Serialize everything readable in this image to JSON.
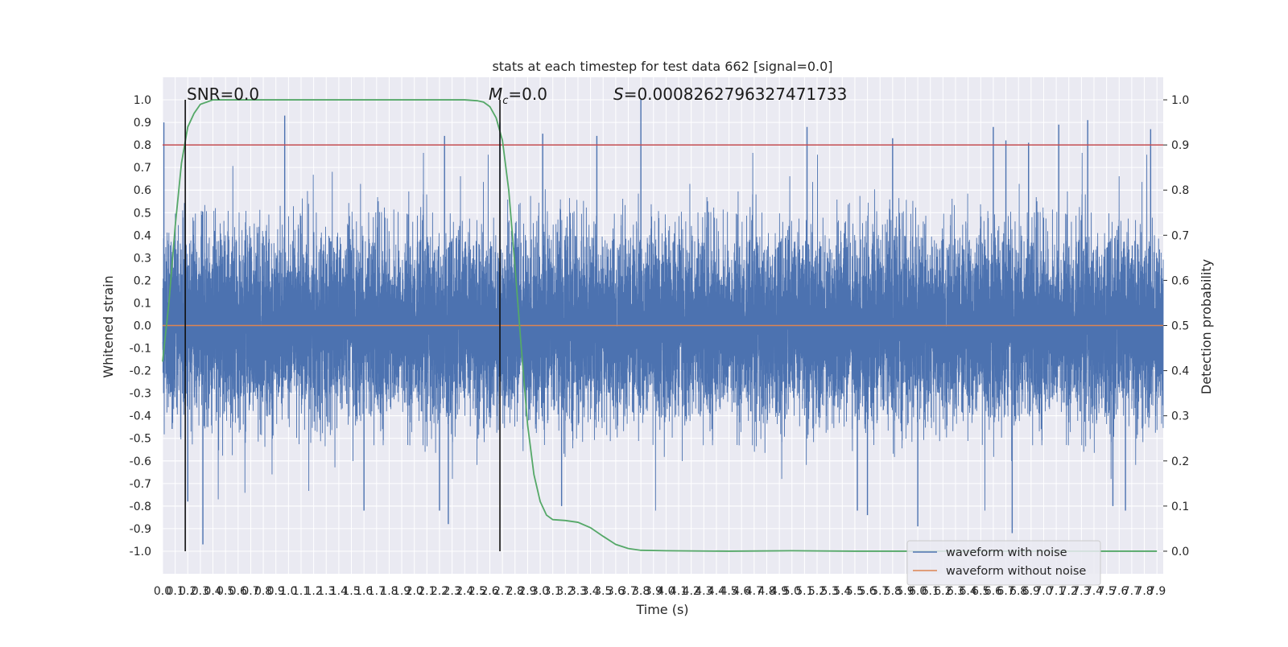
{
  "chart_data": {
    "type": "line",
    "title": "stats at each timestep for test data 662 [signal=0.0]",
    "xlabel": "Time (s)",
    "ylabel": "Whitened strain",
    "y2label": "Detection probability",
    "xlim": [
      0.0,
      7.95
    ],
    "ylim": [
      -1.1,
      1.1
    ],
    "y2lim": [
      -0.05,
      1.05
    ],
    "x_ticks": [
      "0.0",
      "0.1",
      "0.2",
      "0.3",
      "0.4",
      "0.5",
      "0.6",
      "0.7",
      "0.8",
      "0.9",
      "1.0",
      "1.1",
      "1.2",
      "1.3",
      "1.4",
      "1.5",
      "1.6",
      "1.7",
      "1.8",
      "1.9",
      "2.0",
      "2.1",
      "2.2",
      "2.3",
      "2.4",
      "2.5",
      "2.6",
      "2.7",
      "2.8",
      "2.9",
      "3.0",
      "3.1",
      "3.2",
      "3.3",
      "3.4",
      "3.5",
      "3.6",
      "3.7",
      "3.8",
      "3.9",
      "4.0",
      "4.1",
      "4.2",
      "4.3",
      "4.4",
      "4.5",
      "4.6",
      "4.7",
      "4.8",
      "4.9",
      "5.0",
      "5.1",
      "5.2",
      "5.3",
      "5.4",
      "5.5",
      "5.6",
      "5.7",
      "5.8",
      "5.9",
      "6.0",
      "6.1",
      "6.2",
      "6.3",
      "6.4",
      "6.5",
      "6.6",
      "6.7",
      "6.8",
      "6.9",
      "7.0",
      "7.1",
      "7.2",
      "7.3",
      "7.4",
      "7.5",
      "7.6",
      "7.7",
      "7.8",
      "7.9"
    ],
    "y_ticks": [
      "1.0",
      "0.9",
      "0.8",
      "0.7",
      "0.6",
      "0.5",
      "0.4",
      "0.3",
      "0.2",
      "0.1",
      "0.0",
      "-0.1",
      "-0.2",
      "-0.3",
      "-0.4",
      "-0.5",
      "-0.6",
      "-0.7",
      "-0.8",
      "-0.9",
      "-1.0"
    ],
    "y2_ticks": [
      "1.0",
      "0.9",
      "0.8",
      "0.7",
      "0.6",
      "0.5",
      "0.4",
      "0.3",
      "0.2",
      "0.1",
      "0.0"
    ],
    "grid": true,
    "legend": {
      "placement": "lower-right",
      "entries": [
        {
          "label": "waveform with noise",
          "color": "#4c72b0"
        },
        {
          "label": "waveform without noise",
          "color": "#dd8452"
        }
      ]
    },
    "annotations": {
      "snr": "SNR=0.0",
      "mc_symbol": "M",
      "mc_sub": "c",
      "mc_value": "=0.0",
      "s_symbol": "S",
      "s_value": "=0.0008262796327471733"
    },
    "vlines_x": [
      0.18,
      2.68
    ],
    "threshold_y2": 0.9,
    "series": [
      {
        "name": "waveform with noise",
        "color": "#4c72b0",
        "sample_interval": 0.0005,
        "typical_amplitude": 0.4,
        "peaks": [
          {
            "x": 0.01,
            "y": 0.9
          },
          {
            "x": 0.97,
            "y": 0.93
          },
          {
            "x": 2.24,
            "y": 0.84
          },
          {
            "x": 2.68,
            "y": 0.9
          },
          {
            "x": 3.02,
            "y": 0.85
          },
          {
            "x": 3.45,
            "y": 0.84
          },
          {
            "x": 3.8,
            "y": 1.0
          },
          {
            "x": 5.12,
            "y": 0.88
          },
          {
            "x": 5.8,
            "y": 0.83
          },
          {
            "x": 6.6,
            "y": 0.88
          },
          {
            "x": 6.7,
            "y": 0.82
          },
          {
            "x": 6.88,
            "y": 0.81
          },
          {
            "x": 7.12,
            "y": 0.89
          },
          {
            "x": 7.35,
            "y": 0.91
          },
          {
            "x": 7.85,
            "y": 0.87
          }
        ],
        "troughs": [
          {
            "x": 0.32,
            "y": -0.97
          },
          {
            "x": 0.2,
            "y": -0.78
          },
          {
            "x": 1.6,
            "y": -0.82
          },
          {
            "x": 2.2,
            "y": -0.82
          },
          {
            "x": 2.27,
            "y": -0.88
          },
          {
            "x": 3.17,
            "y": -0.8
          },
          {
            "x": 5.52,
            "y": -0.82
          },
          {
            "x": 5.6,
            "y": -0.84
          },
          {
            "x": 6.0,
            "y": -0.89
          },
          {
            "x": 6.75,
            "y": -0.92
          },
          {
            "x": 7.55,
            "y": -0.8
          },
          {
            "x": 7.65,
            "y": -0.82
          }
        ]
      },
      {
        "name": "waveform without noise",
        "color": "#dd8452",
        "x": [
          0.0,
          7.95
        ],
        "y": [
          0.0,
          0.0
        ]
      },
      {
        "axis": "right",
        "color": "#55a868",
        "x": [
          0.0,
          0.05,
          0.1,
          0.15,
          0.2,
          0.25,
          0.3,
          0.35,
          0.4,
          0.5,
          0.6,
          0.8,
          1.0,
          1.5,
          2.0,
          2.4,
          2.5,
          2.55,
          2.6,
          2.65,
          2.7,
          2.75,
          2.8,
          2.85,
          2.9,
          2.95,
          3.0,
          3.05,
          3.1,
          3.2,
          3.3,
          3.4,
          3.5,
          3.6,
          3.7,
          3.8,
          4.0,
          4.5,
          5.0,
          5.5,
          6.0,
          6.5,
          7.0,
          7.5,
          7.9
        ],
        "y": [
          0.42,
          0.55,
          0.72,
          0.86,
          0.94,
          0.97,
          0.99,
          0.995,
          1.0,
          1.0,
          1.0,
          1.0,
          1.0,
          1.0,
          1.0,
          1.0,
          0.998,
          0.995,
          0.985,
          0.96,
          0.91,
          0.8,
          0.63,
          0.45,
          0.28,
          0.17,
          0.11,
          0.08,
          0.07,
          0.068,
          0.064,
          0.052,
          0.033,
          0.015,
          0.006,
          0.002,
          0.001,
          0.0,
          0.001,
          0.0,
          0.0,
          0.0,
          0.0,
          0.0,
          0.0
        ]
      },
      {
        "axis": "right",
        "color": "#c44e52",
        "x": [
          0.0,
          7.95
        ],
        "y": [
          0.9,
          0.9
        ]
      }
    ]
  }
}
